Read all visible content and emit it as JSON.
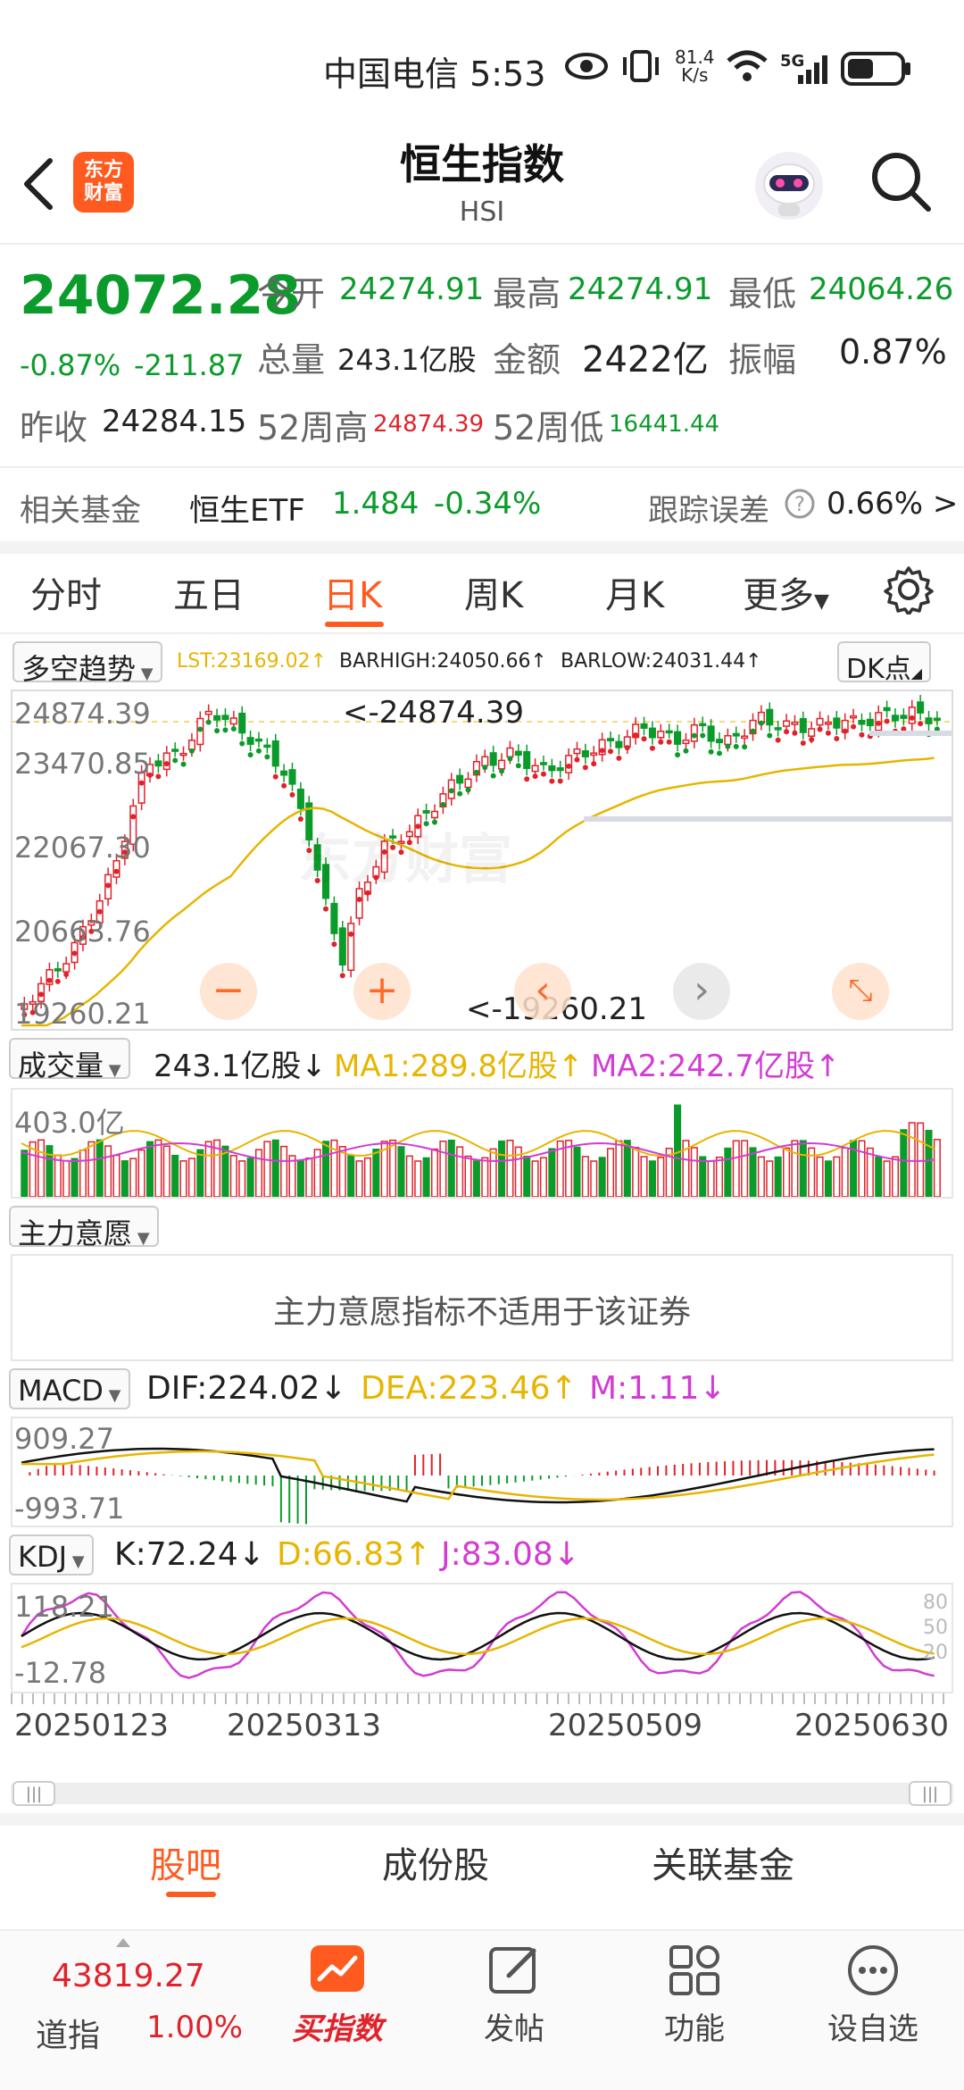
{
  "status_bar": {
    "carrier_time": "中国电信 5:53",
    "net_speed_top": "81.4",
    "net_speed_bottom": "K/s",
    "signal_label": "5G"
  },
  "header": {
    "logo_line1": "东方",
    "logo_line2": "财富",
    "title": "恒生指数",
    "subtitle": "HSI"
  },
  "quote": {
    "price": "24072.28",
    "change_pct": "-0.87%",
    "change_abs": "-211.87",
    "open_label": "今开",
    "open_value": "24274.91",
    "high_label": "最高",
    "high_value": "24274.91",
    "low_label": "最低",
    "low_value": "24064.26",
    "volume_label": "总量",
    "volume_value": "243.1亿股",
    "amount_label": "金额",
    "amount_value": "2422亿",
    "amplitude_label": "振幅",
    "amplitude_value": "0.87%",
    "prev_close_label": "昨收",
    "prev_close_value": "24284.15",
    "wk52_high_label": "52周高",
    "wk52_high_value": "24874.39",
    "wk52_low_label": "52周低",
    "wk52_low_value": "16441.44"
  },
  "fund": {
    "label": "相关基金",
    "name": "恒生ETF",
    "price": "1.484",
    "change": "-0.34%",
    "tracking_label": "跟踪误差",
    "tracking_value": "0.66% >"
  },
  "period_tabs": [
    "分时",
    "五日",
    "日K",
    "周K",
    "月K",
    "更多"
  ],
  "active_tab_index": 2,
  "kline": {
    "indicator": "多空趋势",
    "lst": "LST:23169.02↑",
    "barhigh": "BARHIGH:24050.66↑",
    "barlow": "BARLOW:24031.44↑",
    "dk_button": "DK点",
    "y_labels": [
      "24874.39",
      "23470.85",
      "22067.30",
      "20663.76",
      "19260.21"
    ],
    "max_annotation": "<-24874.39",
    "min_annotation": "<-19260.21",
    "watermark": "东方财富"
  },
  "volume": {
    "dropdown": "成交量",
    "value": "243.1亿股↓",
    "ma1": "MA1:289.8亿股↑",
    "ma2": "MA2:242.7亿股↑",
    "y_label": "403.0亿"
  },
  "main_force": {
    "dropdown": "主力意愿",
    "message": "主力意愿指标不适用于该证券"
  },
  "macd": {
    "dropdown": "MACD",
    "dif": "DIF:224.02↓",
    "dea": "DEA:223.46↑",
    "m": "M:1.11↓",
    "y_top": "909.27",
    "y_bottom": "-993.71"
  },
  "kdj": {
    "dropdown": "KDJ",
    "k": "K:72.24↓",
    "d": "D:66.83↑",
    "j": "J:83.08↓",
    "y_top": "118.21",
    "y_bottom": "-12.78",
    "right_labels": [
      "80",
      "50",
      "20"
    ]
  },
  "dates": [
    "20250123",
    "20250313",
    "20250509",
    "20250630"
  ],
  "bottom_tabs": [
    "股吧",
    "成份股",
    "关联基金"
  ],
  "bottom_nav": {
    "index_value": "43819.27",
    "index_name": "道指",
    "index_change": "1.00%",
    "buy_label": "买指数",
    "post_label": "发帖",
    "function_label": "功能",
    "watchlist_label": "设自选"
  },
  "colors": {
    "up": "#e0222b",
    "down": "#0b9b2b",
    "accent": "#ff5a1f",
    "ma_yellow": "#e7b500",
    "magenta": "#d23cd2"
  }
}
